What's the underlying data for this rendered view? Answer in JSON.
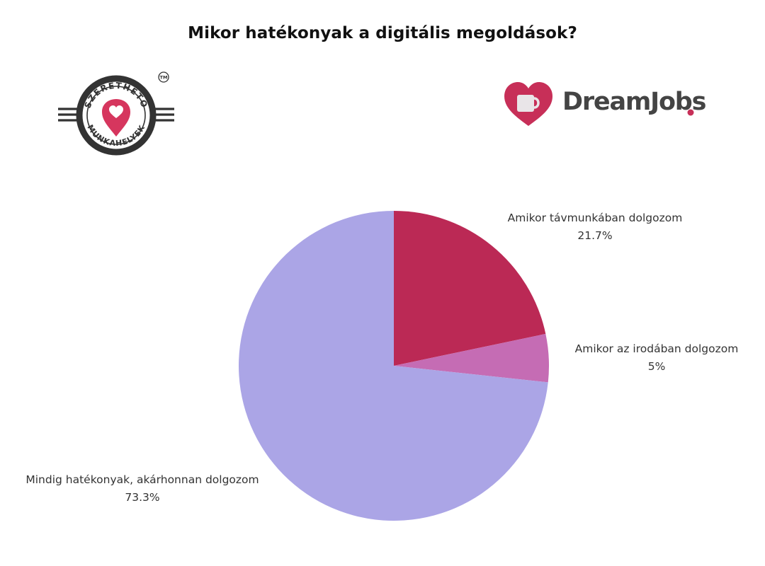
{
  "chart_data": {
    "type": "pie",
    "title": "Mikor hatékonyak a digitális megoldások?",
    "slices": [
      {
        "label": "Amikor távmunkában dolgozom",
        "value": 21.7,
        "value_label": "21.7%",
        "color": "#bb2955"
      },
      {
        "label": "Amikor az irodában dolgozom",
        "value": 5,
        "value_label": "5%",
        "color": "#c56cb4"
      },
      {
        "label": "Mindig hatékonyak, akárhonnan dolgozom",
        "value": 73.3,
        "value_label": "73.3%",
        "color": "#aba5e6"
      }
    ],
    "start_angle": "12 o'clock",
    "direction": "clockwise"
  },
  "logos": {
    "left": {
      "text_top": "SZERETHETŐ",
      "text_bottom": "MUNKAHELYEK",
      "trademark": "TM",
      "ring_color": "#333333",
      "heart_color": "#d6365e"
    },
    "right": {
      "wordmark": "DreamJobs",
      "heart_color": "#c72f58",
      "text_color": "#444444"
    }
  }
}
